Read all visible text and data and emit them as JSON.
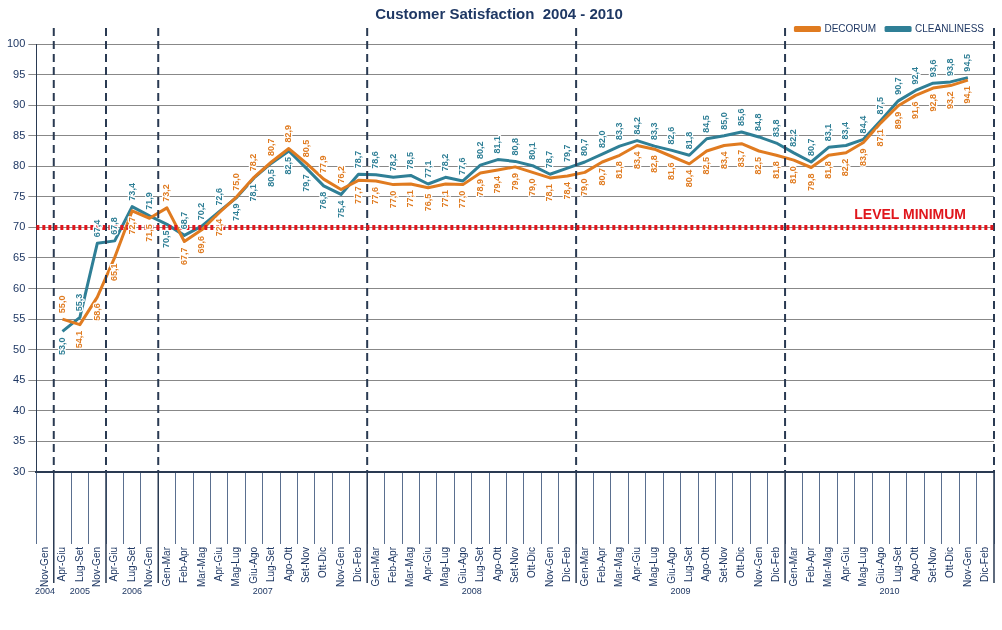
{
  "chart_data": {
    "type": "line",
    "title": "Customer Satisfaction  2004 - 2010",
    "categories": [
      "Nov-Gen",
      "Apr-Giu",
      "Lug-Set",
      "Nov-Gen",
      "Apr-Giu",
      "Lug-Set",
      "Nov-Gen",
      "Gen-Mar",
      "Feb-Apr",
      "Mar-Mag",
      "Apr-Giu",
      "Mag-Lug",
      "Giu-Ago",
      "Lug-Set",
      "Ago-Ott",
      "Set-Nov",
      "Ott-Dic",
      "Nov-Gen",
      "Dic-Feb",
      "Gen-Mar",
      "Feb-Apr",
      "Mar-Mag",
      "Apr-Giu",
      "Mag-Lug",
      "Giu-Ago",
      "Lug-Set",
      "Ago-Ott",
      "Set-Nov",
      "Ott-Dic",
      "Nov-Gen",
      "Dic-Feb",
      "Gen-Mar",
      "Feb-Apr",
      "Mar-Mag",
      "Apr-Giu",
      "Mag-Lug",
      "Giu-Ago",
      "Lug-Set",
      "Ago-Ott",
      "Set-Nov",
      "Ott-Dic",
      "Nov-Gen",
      "Dic-Feb",
      "Gen-Mar",
      "Feb-Apr",
      "Mar-Mag",
      "Apr-Giu",
      "Mag-Lug",
      "Giu-Ago",
      "Lug-Set",
      "Ago-Ott",
      "Set-Nov",
      "Ott-Dic",
      "Nov-Gen",
      "Dic-Feb"
    ],
    "series": [
      {
        "name": "DECORUM",
        "color": "#e07b20",
        "values": [
          null,
          55.0,
          54.1,
          58.6,
          65.1,
          72.7,
          71.5,
          73.2,
          67.7,
          69.6,
          72.4,
          75.0,
          78.2,
          80.7,
          82.9,
          80.5,
          77.9,
          76.2,
          77.7,
          77.6,
          77.0,
          77.1,
          76.5,
          77.1,
          77.0,
          78.9,
          79.4,
          79.9,
          79.0,
          78.1,
          78.4,
          79.0,
          80.7,
          81.8,
          83.4,
          82.8,
          81.6,
          80.4,
          82.5,
          83.4,
          83.7,
          82.5,
          81.8,
          81.0,
          79.8,
          81.8,
          82.2,
          83.9,
          87.1,
          89.9,
          91.6,
          92.8,
          93.2,
          94.1,
          null
        ],
        "value_labels": [
          null,
          "55,0",
          "54,1",
          "58,6",
          "65,1",
          "72,7",
          "71,5",
          "73,2",
          "67,7",
          "69,6",
          "72,4",
          "75,0",
          "78,2",
          "80,7",
          "82,9",
          "80,5",
          "77,9",
          "76,2",
          "77,7",
          "77,6",
          "77,0",
          "77,1",
          "76,5",
          "77,1",
          "77,0",
          "78,9",
          "79,4",
          "79,9",
          "79,0",
          "78,1",
          "78,4",
          "79,0",
          "80,7",
          "81,8",
          "83,4",
          "82,8",
          "81,6",
          "80,4",
          "82,5",
          "83,4",
          "83,7",
          "82,5",
          "81,8",
          "81,0",
          "79,8",
          "81,8",
          "82,2",
          "83,9",
          "87,1",
          "89,9",
          "91,6",
          "92,8",
          "93,2",
          "94,1",
          null
        ]
      },
      {
        "name": "CLEANLINESS",
        "color": "#2f7f96",
        "values": [
          null,
          53.0,
          55.3,
          67.4,
          67.8,
          73.4,
          71.9,
          70.5,
          68.7,
          70.2,
          72.6,
          74.9,
          78.1,
          80.5,
          82.5,
          79.7,
          76.8,
          75.4,
          78.7,
          78.6,
          78.2,
          78.5,
          77.1,
          78.2,
          77.6,
          80.2,
          81.1,
          80.8,
          80.1,
          78.7,
          79.7,
          80.7,
          82.0,
          83.3,
          84.2,
          83.3,
          82.6,
          81.8,
          84.5,
          85.0,
          85.6,
          84.8,
          83.8,
          82.2,
          80.7,
          83.1,
          83.4,
          84.4,
          87.5,
          90.7,
          92.4,
          93.6,
          93.8,
          94.5,
          null
        ],
        "value_labels": [
          null,
          "53,0",
          "55,3",
          "67,4",
          "67,8",
          "73,4",
          "71,9",
          "70,5",
          "68,7",
          "70,2",
          "72,6",
          "74,9",
          "78,1",
          "80,5",
          "82,5",
          "79,7",
          "76,8",
          "75,4",
          "78,7",
          "78,6",
          "78,2",
          "78,5",
          "77,1",
          "78,2",
          "77,6",
          "80,2",
          "81,1",
          "80,8",
          "80,1",
          "78,7",
          "79,7",
          "80,7",
          "82,0",
          "83,3",
          "84,2",
          "83,3",
          "82,6",
          "81,8",
          "84,5",
          "85,0",
          "85,6",
          "84,8",
          "83,8",
          "82,2",
          "80,7",
          "83,1",
          "83,4",
          "84,4",
          "87,5",
          "90,7",
          "92,4",
          "93,6",
          "93,8",
          "94,5",
          null
        ]
      }
    ],
    "ylim": [
      30,
      100
    ],
    "yticks": [
      30,
      35,
      40,
      45,
      50,
      55,
      60,
      65,
      70,
      75,
      80,
      85,
      90,
      95,
      100
    ],
    "grid": "y",
    "legend": "top right",
    "marker": "none",
    "line_style": "solid",
    "ref_lines": [
      {
        "axis": "y",
        "value": 70,
        "label": "LEVEL MINIMUM",
        "color": "#e0161c",
        "line_style": "dotted"
      }
    ],
    "annotations": [
      "2004",
      "2005",
      "2006",
      "2007",
      "2008",
      "2009",
      "2010"
    ]
  }
}
